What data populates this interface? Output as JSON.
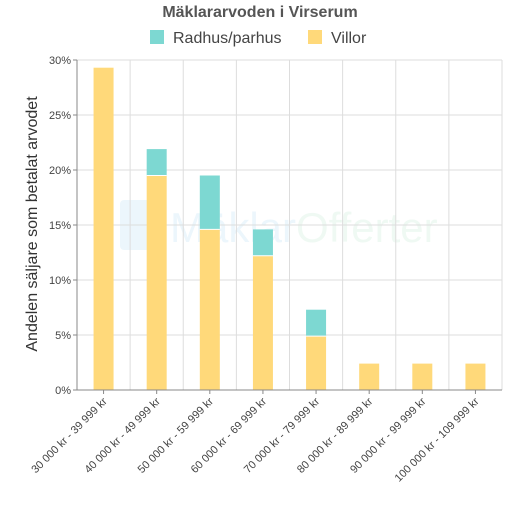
{
  "chart_data": {
    "type": "bar",
    "stacked": true,
    "title": "Mäklararvoden i Virserum",
    "ylabel": "Andelen säljare som betalat arvodet",
    "xlabel": "",
    "ylim": [
      0,
      30
    ],
    "yticks": [
      "0%",
      "5%",
      "10%",
      "15%",
      "20%",
      "25%",
      "30%"
    ],
    "grid": true,
    "legend_position": "top",
    "categories": [
      "30 000 kr - 39 999 kr",
      "40 000 kr - 49 999 kr",
      "50 000 kr - 59 999 kr",
      "60 000 kr - 69 999 kr",
      "70 000 kr - 79 999 kr",
      "80 000 kr - 89 999 kr",
      "90 000 kr - 99 999 kr",
      "100 000 kr - 109 999 kr"
    ],
    "series": [
      {
        "name": "Villor",
        "color": "#ffd97a",
        "values": [
          29.3,
          19.5,
          14.6,
          12.2,
          4.9,
          2.4,
          2.4,
          2.4
        ]
      },
      {
        "name": "Radhus/parhus",
        "color": "#7dd8d2",
        "values": [
          0,
          2.4,
          4.9,
          2.4,
          2.4,
          0,
          0,
          0
        ]
      }
    ],
    "legend_order": [
      "Radhus/parhus",
      "Villor"
    ]
  },
  "watermark": {
    "part1": "Mäklar",
    "part2": "Offerter",
    "color1": "#5fb8e6",
    "color2": "#7dd0a0"
  }
}
